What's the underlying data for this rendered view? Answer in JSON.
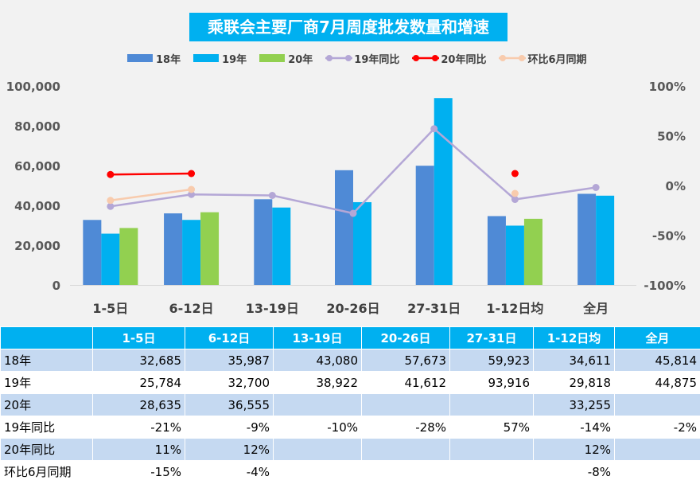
{
  "title": "乘联会主要厂商7月周度批发数量和增速",
  "colors": {
    "s18": "#4f8ad6",
    "s19": "#00b0f0",
    "s20": "#92d050",
    "yoy19": "#b4a7d6",
    "yoy20": "#ff0000",
    "mom": "#f8cbad",
    "header": "#00b0f0",
    "alt_row": "#c5d9f1"
  },
  "legend": [
    "18年",
    "19年",
    "20年",
    "19年同比",
    "20年同比",
    "环比6月同期"
  ],
  "chart_data": {
    "type": "bar",
    "title": "乘联会主要厂商7月周度批发数量和增速",
    "categories": [
      "1-5日",
      "6-12日",
      "13-19日",
      "20-26日",
      "27-31日",
      "1-12日均",
      "全月"
    ],
    "series": [
      {
        "name": "18年",
        "axis": "left",
        "kind": "bar",
        "values": [
          32685,
          35987,
          43080,
          57673,
          59923,
          34611,
          45814
        ]
      },
      {
        "name": "19年",
        "axis": "left",
        "kind": "bar",
        "values": [
          25784,
          32700,
          38922,
          41612,
          93916,
          29818,
          44875
        ]
      },
      {
        "name": "20年",
        "axis": "left",
        "kind": "bar",
        "values": [
          28635,
          36555,
          null,
          null,
          null,
          33255,
          null
        ]
      },
      {
        "name": "19年同比",
        "axis": "right",
        "kind": "line",
        "values": [
          -21,
          -9,
          -10,
          -28,
          57,
          -14,
          -2
        ]
      },
      {
        "name": "20年同比",
        "axis": "right",
        "kind": "line",
        "values": [
          11,
          12,
          null,
          null,
          null,
          12,
          null
        ]
      },
      {
        "name": "环比6月同期",
        "axis": "right",
        "kind": "line",
        "values": [
          -15,
          -4,
          null,
          null,
          null,
          -8,
          null
        ]
      }
    ],
    "y_left": {
      "min": 0,
      "max": 100000,
      "ticks": [
        "0",
        "20,000",
        "40,000",
        "60,000",
        "80,000",
        "100,000"
      ]
    },
    "y_right": {
      "min": -100,
      "max": 100,
      "ticks": [
        "-100%",
        "-50%",
        "0%",
        "50%",
        "100%"
      ]
    }
  },
  "table": {
    "headers": [
      "",
      "1-5日",
      "6-12日",
      "13-19日",
      "20-26日",
      "27-31日",
      "1-12日均",
      "全月"
    ],
    "rows": [
      {
        "label": "18年",
        "cells": [
          "32,685",
          "35,987",
          "43,080",
          "57,673",
          "59,923",
          "34,611",
          "45,814"
        ]
      },
      {
        "label": "19年",
        "cells": [
          "25,784",
          "32,700",
          "38,922",
          "41,612",
          "93,916",
          "29,818",
          "44,875"
        ]
      },
      {
        "label": "20年",
        "cells": [
          "28,635",
          "36,555",
          "",
          "",
          "",
          "33,255",
          ""
        ]
      },
      {
        "label": "19年同比",
        "cells": [
          "-21%",
          "-9%",
          "-10%",
          "-28%",
          "57%",
          "-14%",
          "-2%"
        ]
      },
      {
        "label": "20年同比",
        "cells": [
          "11%",
          "12%",
          "",
          "",
          "",
          "12%",
          ""
        ]
      },
      {
        "label": "环比6月同期",
        "cells": [
          "-15%",
          "-4%",
          "",
          "",
          "",
          "-8%",
          ""
        ]
      }
    ]
  }
}
